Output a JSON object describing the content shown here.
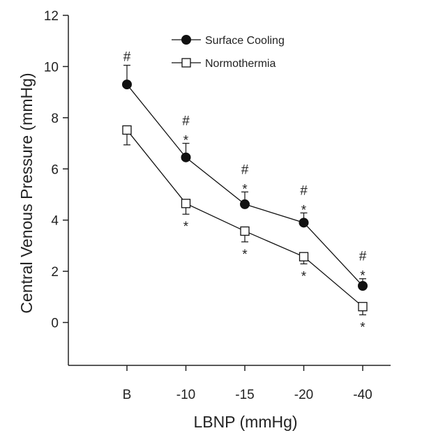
{
  "chart_data": {
    "type": "line",
    "categories": [
      "B",
      "-10",
      "-15",
      "-20",
      "-40"
    ],
    "xlabel": "LBNP    (mmHg)",
    "ylabel": "Central Venous Pressure (mmHg)",
    "ylim": [
      -2,
      12
    ],
    "yticks": [
      "0",
      "2",
      "4",
      "6",
      "8",
      "10",
      "12"
    ],
    "grid": false,
    "legend": "top-center",
    "series": [
      {
        "name": "Surface Cooling",
        "marker": "filled-circle",
        "color": "#111111",
        "values": [
          9.3,
          6.45,
          4.62,
          3.9,
          1.43
        ],
        "error": [
          0.75,
          0.55,
          0.48,
          0.38,
          0.28
        ],
        "error_direction": "up",
        "annotations": [
          "#",
          "#\n*",
          "#\n*",
          "#\n*",
          "#\n*"
        ]
      },
      {
        "name": "Normothermia",
        "marker": "open-square",
        "color": "#111111",
        "values": [
          7.52,
          4.65,
          3.57,
          2.57,
          0.62
        ],
        "error": [
          0.58,
          0.42,
          0.42,
          0.28,
          0.32
        ],
        "error_direction": "down",
        "annotations": [
          "",
          "*",
          "*",
          "*",
          "*"
        ]
      }
    ]
  }
}
